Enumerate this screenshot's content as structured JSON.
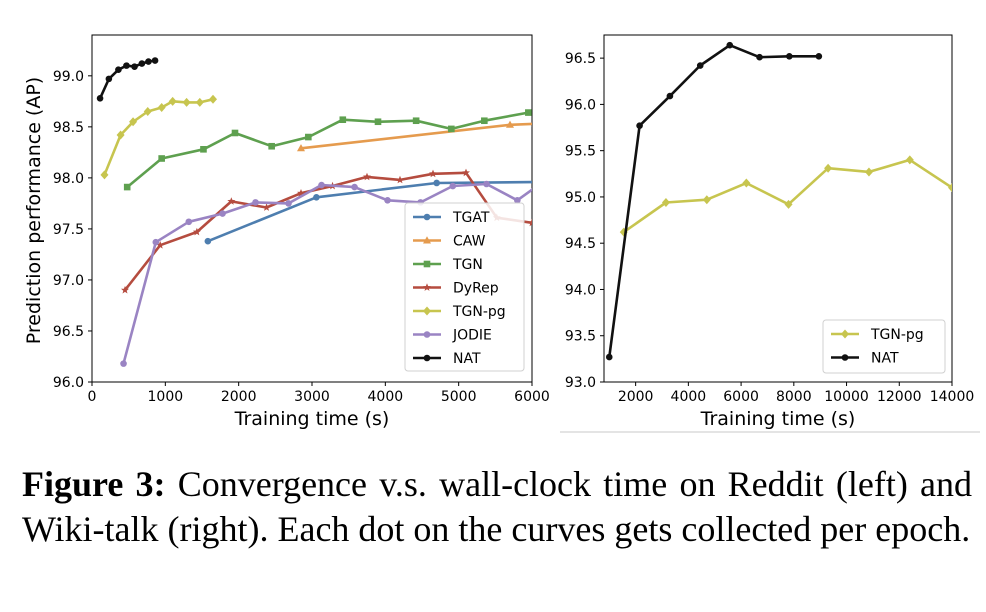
{
  "chart_data": [
    {
      "type": "line",
      "xlabel": "Training time (s)",
      "ylabel": "Prediction performance (AP)",
      "xlim": [
        0,
        6000
      ],
      "ylim": [
        96.0,
        99.4
      ],
      "xticks": [
        "0",
        "1000",
        "2000",
        "3000",
        "4000",
        "5000",
        "6000"
      ],
      "yticks": [
        "96.0",
        "96.5",
        "97.0",
        "97.5",
        "98.0",
        "98.5",
        "99.0"
      ],
      "legend": "bottom-right",
      "series": [
        {
          "name": "TGAT",
          "color": "#4e7eaf",
          "marker": "circle",
          "x": [
            1580,
            3060,
            4700,
            6050
          ],
          "y": [
            97.38,
            97.81,
            97.95,
            97.96
          ]
        },
        {
          "name": "CAW",
          "color": "#e59b4e",
          "marker": "triangle",
          "x": [
            2850,
            5700,
            6050
          ],
          "y": [
            98.29,
            98.52,
            98.53
          ]
        },
        {
          "name": "TGN",
          "color": "#5ea04f",
          "marker": "square",
          "x": [
            480,
            950,
            1520,
            1950,
            2450,
            2950,
            3420,
            3900,
            4420,
            4900,
            5350,
            5950
          ],
          "y": [
            97.91,
            98.19,
            98.28,
            98.44,
            98.31,
            98.4,
            98.57,
            98.55,
            98.56,
            98.48,
            98.56,
            98.64
          ]
        },
        {
          "name": "DyRep",
          "color": "#b54c3f",
          "marker": "star",
          "x": [
            450,
            930,
            1430,
            1900,
            2380,
            2850,
            3280,
            3750,
            4200,
            4650,
            5100,
            5520,
            6000
          ],
          "y": [
            96.9,
            97.34,
            97.47,
            97.77,
            97.71,
            97.85,
            97.92,
            98.01,
            97.98,
            98.04,
            98.05,
            97.61,
            97.56
          ]
        },
        {
          "name": "TGN-pg",
          "color": "#c7c54f",
          "marker": "diamond",
          "x": [
            170,
            390,
            560,
            760,
            950,
            1100,
            1290,
            1470,
            1650
          ],
          "y": [
            98.03,
            98.42,
            98.55,
            98.65,
            98.69,
            98.75,
            98.74,
            98.74,
            98.77
          ]
        },
        {
          "name": "JODIE",
          "color": "#9a84c3",
          "marker": "circle",
          "x": [
            430,
            870,
            1320,
            1780,
            2230,
            2680,
            3130,
            3580,
            4030,
            4480,
            4920,
            5380,
            5800,
            6050
          ],
          "y": [
            96.18,
            97.37,
            97.57,
            97.65,
            97.76,
            97.75,
            97.93,
            97.91,
            97.78,
            97.76,
            97.92,
            97.94,
            97.78,
            97.91
          ]
        },
        {
          "name": "NAT",
          "color": "#111111",
          "marker": "circle",
          "x": [
            110,
            230,
            360,
            470,
            580,
            680,
            770,
            860
          ],
          "y": [
            98.78,
            98.97,
            99.06,
            99.1,
            99.09,
            99.12,
            99.14,
            99.15
          ]
        }
      ]
    },
    {
      "type": "line",
      "xlabel": "Training time (s)",
      "ylabel": "",
      "xlim": [
        800,
        14000
      ],
      "ylim": [
        93.0,
        96.75
      ],
      "xticks": [
        "2000",
        "4000",
        "6000",
        "8000",
        "10000",
        "12000",
        "14000"
      ],
      "yticks": [
        "93.0",
        "93.5",
        "94.0",
        "94.5",
        "95.0",
        "95.5",
        "96.0",
        "96.5"
      ],
      "legend": "bottom-right",
      "series": [
        {
          "name": "TGN-pg",
          "color": "#c7c54f",
          "marker": "diamond",
          "x": [
            1550,
            3150,
            4700,
            6200,
            7800,
            9300,
            10850,
            12400,
            14000
          ],
          "y": [
            94.62,
            94.94,
            94.97,
            95.15,
            94.92,
            95.31,
            95.27,
            95.4,
            95.1
          ]
        },
        {
          "name": "NAT",
          "color": "#111111",
          "marker": "circle",
          "x": [
            1000,
            2150,
            3300,
            4450,
            5570,
            6700,
            7830,
            8950
          ],
          "y": [
            93.27,
            95.77,
            96.09,
            96.42,
            96.64,
            96.51,
            96.52,
            96.52
          ]
        }
      ]
    }
  ],
  "caption": {
    "label": "Figure 3:",
    "text": " Convergence v.s.  wall-clock time on Reddit (left) and Wiki-talk (right).  Each dot on the curves gets collected per epoch."
  }
}
